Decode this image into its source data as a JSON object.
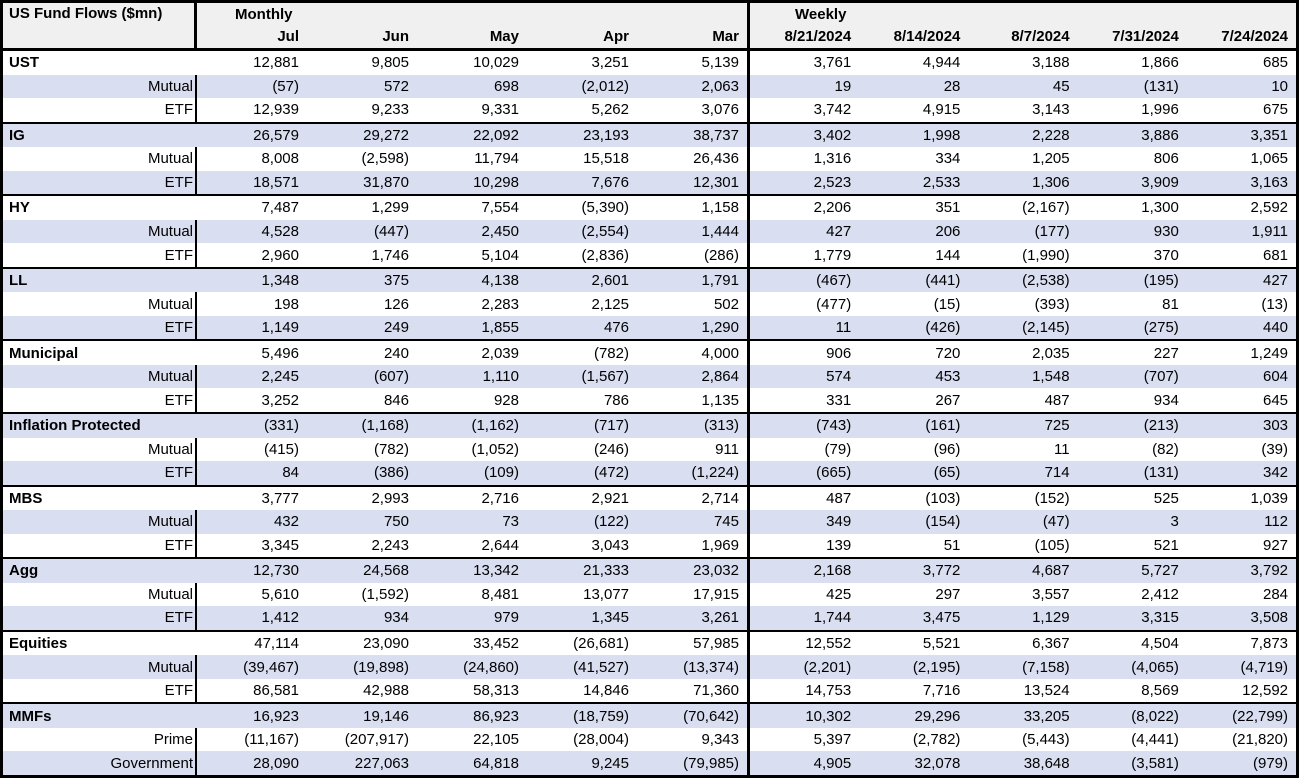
{
  "title": "US Fund Flows ($mn)",
  "colors": {
    "row_shade": "#d9def1",
    "header_bg": "#f0f0f0",
    "border": "#000000",
    "text": "#000000"
  },
  "header": {
    "monthly_label": "Monthly",
    "weekly_label": "Weekly",
    "monthly_columns": [
      "Jul",
      "Jun",
      "May",
      "Apr",
      "Mar"
    ],
    "weekly_columns": [
      "8/21/2024",
      "8/14/2024",
      "8/7/2024",
      "7/31/2024",
      "7/24/2024"
    ]
  },
  "groups": [
    {
      "rows": [
        {
          "label": "UST",
          "monthly": [
            "12,881",
            "9,805",
            "10,029",
            "3,251",
            "5,139"
          ],
          "weekly": [
            "3,761",
            "4,944",
            "3,188",
            "1,866",
            "685"
          ]
        },
        {
          "label": "Mutual",
          "monthly": [
            "(57)",
            "572",
            "698",
            "(2,012)",
            "2,063"
          ],
          "weekly": [
            "19",
            "28",
            "45",
            "(131)",
            "10"
          ]
        },
        {
          "label": "ETF",
          "monthly": [
            "12,939",
            "9,233",
            "9,331",
            "5,262",
            "3,076"
          ],
          "weekly": [
            "3,742",
            "4,915",
            "3,143",
            "1,996",
            "675"
          ]
        }
      ]
    },
    {
      "rows": [
        {
          "label": "IG",
          "monthly": [
            "26,579",
            "29,272",
            "22,092",
            "23,193",
            "38,737"
          ],
          "weekly": [
            "3,402",
            "1,998",
            "2,228",
            "3,886",
            "3,351"
          ]
        },
        {
          "label": "Mutual",
          "monthly": [
            "8,008",
            "(2,598)",
            "11,794",
            "15,518",
            "26,436"
          ],
          "weekly": [
            "1,316",
            "334",
            "1,205",
            "806",
            "1,065"
          ]
        },
        {
          "label": "ETF",
          "monthly": [
            "18,571",
            "31,870",
            "10,298",
            "7,676",
            "12,301"
          ],
          "weekly": [
            "2,523",
            "2,533",
            "1,306",
            "3,909",
            "3,163"
          ]
        }
      ]
    },
    {
      "rows": [
        {
          "label": "HY",
          "monthly": [
            "7,487",
            "1,299",
            "7,554",
            "(5,390)",
            "1,158"
          ],
          "weekly": [
            "2,206",
            "351",
            "(2,167)",
            "1,300",
            "2,592"
          ]
        },
        {
          "label": "Mutual",
          "monthly": [
            "4,528",
            "(447)",
            "2,450",
            "(2,554)",
            "1,444"
          ],
          "weekly": [
            "427",
            "206",
            "(177)",
            "930",
            "1,911"
          ]
        },
        {
          "label": "ETF",
          "monthly": [
            "2,960",
            "1,746",
            "5,104",
            "(2,836)",
            "(286)"
          ],
          "weekly": [
            "1,779",
            "144",
            "(1,990)",
            "370",
            "681"
          ]
        }
      ]
    },
    {
      "rows": [
        {
          "label": "LL",
          "monthly": [
            "1,348",
            "375",
            "4,138",
            "2,601",
            "1,791"
          ],
          "weekly": [
            "(467)",
            "(441)",
            "(2,538)",
            "(195)",
            "427"
          ]
        },
        {
          "label": "Mutual",
          "monthly": [
            "198",
            "126",
            "2,283",
            "2,125",
            "502"
          ],
          "weekly": [
            "(477)",
            "(15)",
            "(393)",
            "81",
            "(13)"
          ]
        },
        {
          "label": "ETF",
          "monthly": [
            "1,149",
            "249",
            "1,855",
            "476",
            "1,290"
          ],
          "weekly": [
            "11",
            "(426)",
            "(2,145)",
            "(275)",
            "440"
          ]
        }
      ]
    },
    {
      "rows": [
        {
          "label": "Municipal",
          "monthly": [
            "5,496",
            "240",
            "2,039",
            "(782)",
            "4,000"
          ],
          "weekly": [
            "906",
            "720",
            "2,035",
            "227",
            "1,249"
          ]
        },
        {
          "label": "Mutual",
          "monthly": [
            "2,245",
            "(607)",
            "1,110",
            "(1,567)",
            "2,864"
          ],
          "weekly": [
            "574",
            "453",
            "1,548",
            "(707)",
            "604"
          ]
        },
        {
          "label": "ETF",
          "monthly": [
            "3,252",
            "846",
            "928",
            "786",
            "1,135"
          ],
          "weekly": [
            "331",
            "267",
            "487",
            "934",
            "645"
          ]
        }
      ]
    },
    {
      "rows": [
        {
          "label": "Inflation Protected",
          "monthly": [
            "(331)",
            "(1,168)",
            "(1,162)",
            "(717)",
            "(313)"
          ],
          "weekly": [
            "(743)",
            "(161)",
            "725",
            "(213)",
            "303"
          ]
        },
        {
          "label": "Mutual",
          "monthly": [
            "(415)",
            "(782)",
            "(1,052)",
            "(246)",
            "911"
          ],
          "weekly": [
            "(79)",
            "(96)",
            "11",
            "(82)",
            "(39)"
          ]
        },
        {
          "label": "ETF",
          "monthly": [
            "84",
            "(386)",
            "(109)",
            "(472)",
            "(1,224)"
          ],
          "weekly": [
            "(665)",
            "(65)",
            "714",
            "(131)",
            "342"
          ]
        }
      ]
    },
    {
      "rows": [
        {
          "label": "MBS",
          "monthly": [
            "3,777",
            "2,993",
            "2,716",
            "2,921",
            "2,714"
          ],
          "weekly": [
            "487",
            "(103)",
            "(152)",
            "525",
            "1,039"
          ]
        },
        {
          "label": "Mutual",
          "monthly": [
            "432",
            "750",
            "73",
            "(122)",
            "745"
          ],
          "weekly": [
            "349",
            "(154)",
            "(47)",
            "3",
            "112"
          ]
        },
        {
          "label": "ETF",
          "monthly": [
            "3,345",
            "2,243",
            "2,644",
            "3,043",
            "1,969"
          ],
          "weekly": [
            "139",
            "51",
            "(105)",
            "521",
            "927"
          ]
        }
      ]
    },
    {
      "rows": [
        {
          "label": "Agg",
          "monthly": [
            "12,730",
            "24,568",
            "13,342",
            "21,333",
            "23,032"
          ],
          "weekly": [
            "2,168",
            "3,772",
            "4,687",
            "5,727",
            "3,792"
          ]
        },
        {
          "label": "Mutual",
          "monthly": [
            "5,610",
            "(1,592)",
            "8,481",
            "13,077",
            "17,915"
          ],
          "weekly": [
            "425",
            "297",
            "3,557",
            "2,412",
            "284"
          ]
        },
        {
          "label": "ETF",
          "monthly": [
            "1,412",
            "934",
            "979",
            "1,345",
            "3,261"
          ],
          "weekly": [
            "1,744",
            "3,475",
            "1,129",
            "3,315",
            "3,508"
          ]
        }
      ]
    },
    {
      "rows": [
        {
          "label": "Equities",
          "monthly": [
            "47,114",
            "23,090",
            "33,452",
            "(26,681)",
            "57,985"
          ],
          "weekly": [
            "12,552",
            "5,521",
            "6,367",
            "4,504",
            "7,873"
          ]
        },
        {
          "label": "Mutual",
          "monthly": [
            "(39,467)",
            "(19,898)",
            "(24,860)",
            "(41,527)",
            "(13,374)"
          ],
          "weekly": [
            "(2,201)",
            "(2,195)",
            "(7,158)",
            "(4,065)",
            "(4,719)"
          ]
        },
        {
          "label": "ETF",
          "monthly": [
            "86,581",
            "42,988",
            "58,313",
            "14,846",
            "71,360"
          ],
          "weekly": [
            "14,753",
            "7,716",
            "13,524",
            "8,569",
            "12,592"
          ]
        }
      ]
    },
    {
      "rows": [
        {
          "label": "MMFs",
          "monthly": [
            "16,923",
            "19,146",
            "86,923",
            "(18,759)",
            "(70,642)"
          ],
          "weekly": [
            "10,302",
            "29,296",
            "33,205",
            "(8,022)",
            "(22,799)"
          ]
        },
        {
          "label": "Prime",
          "monthly": [
            "(11,167)",
            "(207,917)",
            "22,105",
            "(28,004)",
            "9,343"
          ],
          "weekly": [
            "5,397",
            "(2,782)",
            "(5,443)",
            "(4,441)",
            "(21,820)"
          ]
        },
        {
          "label": "Government",
          "monthly": [
            "28,090",
            "227,063",
            "64,818",
            "9,245",
            "(79,985)"
          ],
          "weekly": [
            "4,905",
            "32,078",
            "38,648",
            "(3,581)",
            "(979)"
          ]
        }
      ]
    }
  ]
}
